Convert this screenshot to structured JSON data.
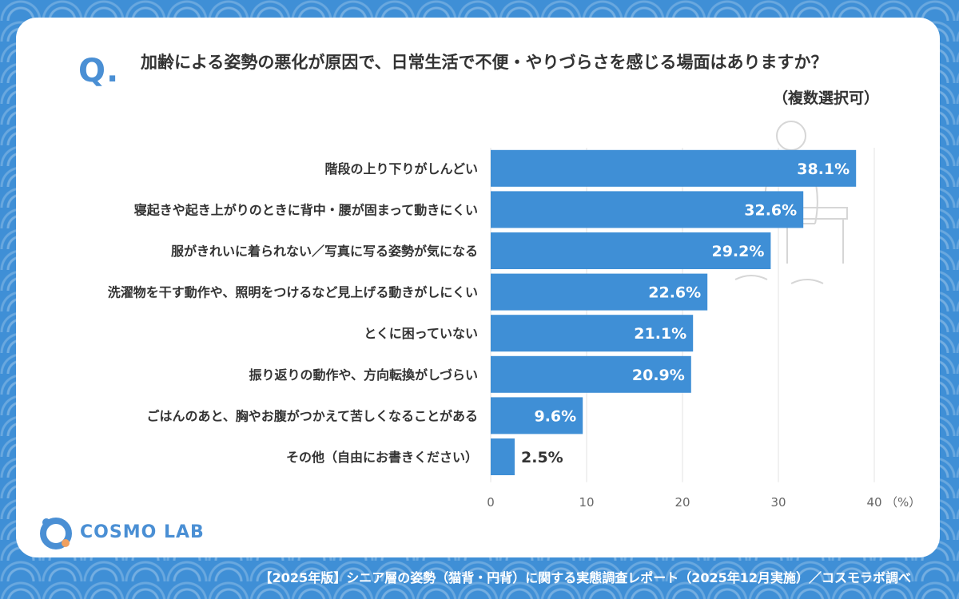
{
  "question": {
    "mark": "Q.",
    "text": "加齢による姿勢の悪化が原因で、日常生活で不便・やりづらさを感じる場面はありますか？",
    "note": "（複数選択可）"
  },
  "chart_data": {
    "type": "bar",
    "orientation": "horizontal",
    "categories": [
      "階段の上り下りがしんどい",
      "寝起きや起き上がりのときに背中・腰が固まって動きにくい",
      "服がきれいに着られない／写真に写る姿勢が気になる",
      "洗濯物を干す動作や、照明をつけるなど見上げる動きがしにくい",
      "とくに困っていない",
      "振り返りの動作や、方向転換がしづらい",
      "ごはんのあと、胸やお腹がつかえて苦しくなることがある",
      "その他（自由にお書きください）"
    ],
    "values": [
      38.1,
      32.6,
      29.2,
      22.6,
      21.1,
      20.9,
      9.6,
      2.5
    ],
    "value_labels": [
      "38.1%",
      "32.6%",
      "29.2%",
      "22.6%",
      "21.1%",
      "20.9%",
      "9.6%",
      "2.5%"
    ],
    "xlim": [
      0,
      40
    ],
    "xticks": [
      "0",
      "10",
      "20",
      "30",
      "40"
    ],
    "xunit": "（%）",
    "grid": true,
    "bar_color": "#3f8fd6",
    "label_color_inside": "#ffffff",
    "label_color_outside": "#333333"
  },
  "logo": {
    "name": "COSMO LAB",
    "icon": "cosmo-lab-logo-icon",
    "colors": [
      "#4a8fd4",
      "#f0a060"
    ]
  },
  "footer": {
    "text": "【2025年版】シニア層の姿勢（猫背・円背）に関する実態調査レポート（2025年12月実施）／コスモラボ調べ"
  }
}
